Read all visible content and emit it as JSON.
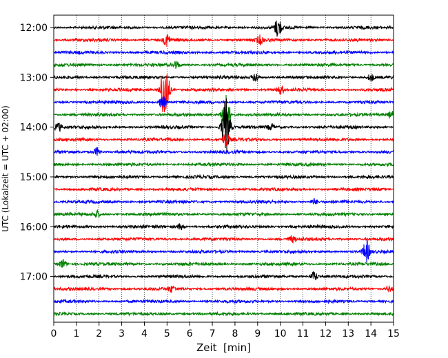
{
  "chart_data": {
    "type": "line",
    "title": "",
    "xlabel": "Zeit  [min]",
    "ylabel": "UTC (Lokalzeit = UTC + 02:00)",
    "xlim": [
      0,
      15
    ],
    "x_ticks": [
      0,
      1,
      2,
      3,
      4,
      5,
      6,
      7,
      8,
      9,
      10,
      11,
      12,
      13,
      14,
      15
    ],
    "x_tick_labels": [
      "0",
      "1",
      "2",
      "3",
      "4",
      "5",
      "6",
      "7",
      "8",
      "9",
      "10",
      "11",
      "12",
      "13",
      "14",
      "15"
    ],
    "y_tick_labels": [
      "12:00",
      "13:00",
      "14:00",
      "15:00",
      "16:00",
      "17:00"
    ],
    "y_tick_rows": [
      0,
      4,
      8,
      12,
      16,
      20
    ],
    "row_minutes": 15,
    "rows": 24,
    "grid": "vertical dotted",
    "series_colors": [
      "#000000",
      "#ff0000",
      "#0000ff",
      "#008000"
    ],
    "events": [
      {
        "row": 0,
        "minute": 9.9,
        "amplitude": 14
      },
      {
        "row": 1,
        "minute": 5.0,
        "amplitude": 9
      },
      {
        "row": 1,
        "minute": 9.1,
        "amplitude": 6
      },
      {
        "row": 3,
        "minute": 5.4,
        "amplitude": 5
      },
      {
        "row": 4,
        "minute": 8.9,
        "amplitude": 7
      },
      {
        "row": 4,
        "minute": 14.0,
        "amplitude": 5
      },
      {
        "row": 5,
        "minute": 4.9,
        "amplitude": 48
      },
      {
        "row": 5,
        "minute": 10.0,
        "amplitude": 6
      },
      {
        "row": 6,
        "minute": 4.8,
        "amplitude": 10
      },
      {
        "row": 7,
        "minute": 7.6,
        "amplitude": 30
      },
      {
        "row": 7,
        "minute": 14.9,
        "amplitude": 5
      },
      {
        "row": 8,
        "minute": 0.2,
        "amplitude": 6
      },
      {
        "row": 8,
        "minute": 7.6,
        "amplitude": 42
      },
      {
        "row": 8,
        "minute": 9.6,
        "amplitude": 4
      },
      {
        "row": 9,
        "minute": 7.6,
        "amplitude": 10
      },
      {
        "row": 10,
        "minute": 1.9,
        "amplitude": 6
      },
      {
        "row": 14,
        "minute": 11.5,
        "amplitude": 4
      },
      {
        "row": 15,
        "minute": 1.9,
        "amplitude": 5
      },
      {
        "row": 16,
        "minute": 5.6,
        "amplitude": 4
      },
      {
        "row": 17,
        "minute": 10.5,
        "amplitude": 4
      },
      {
        "row": 18,
        "minute": 13.8,
        "amplitude": 16
      },
      {
        "row": 19,
        "minute": 0.4,
        "amplitude": 7
      },
      {
        "row": 20,
        "minute": 11.5,
        "amplitude": 7
      },
      {
        "row": 21,
        "minute": 5.2,
        "amplitude": 4
      },
      {
        "row": 21,
        "minute": 14.8,
        "amplitude": 4
      }
    ]
  }
}
